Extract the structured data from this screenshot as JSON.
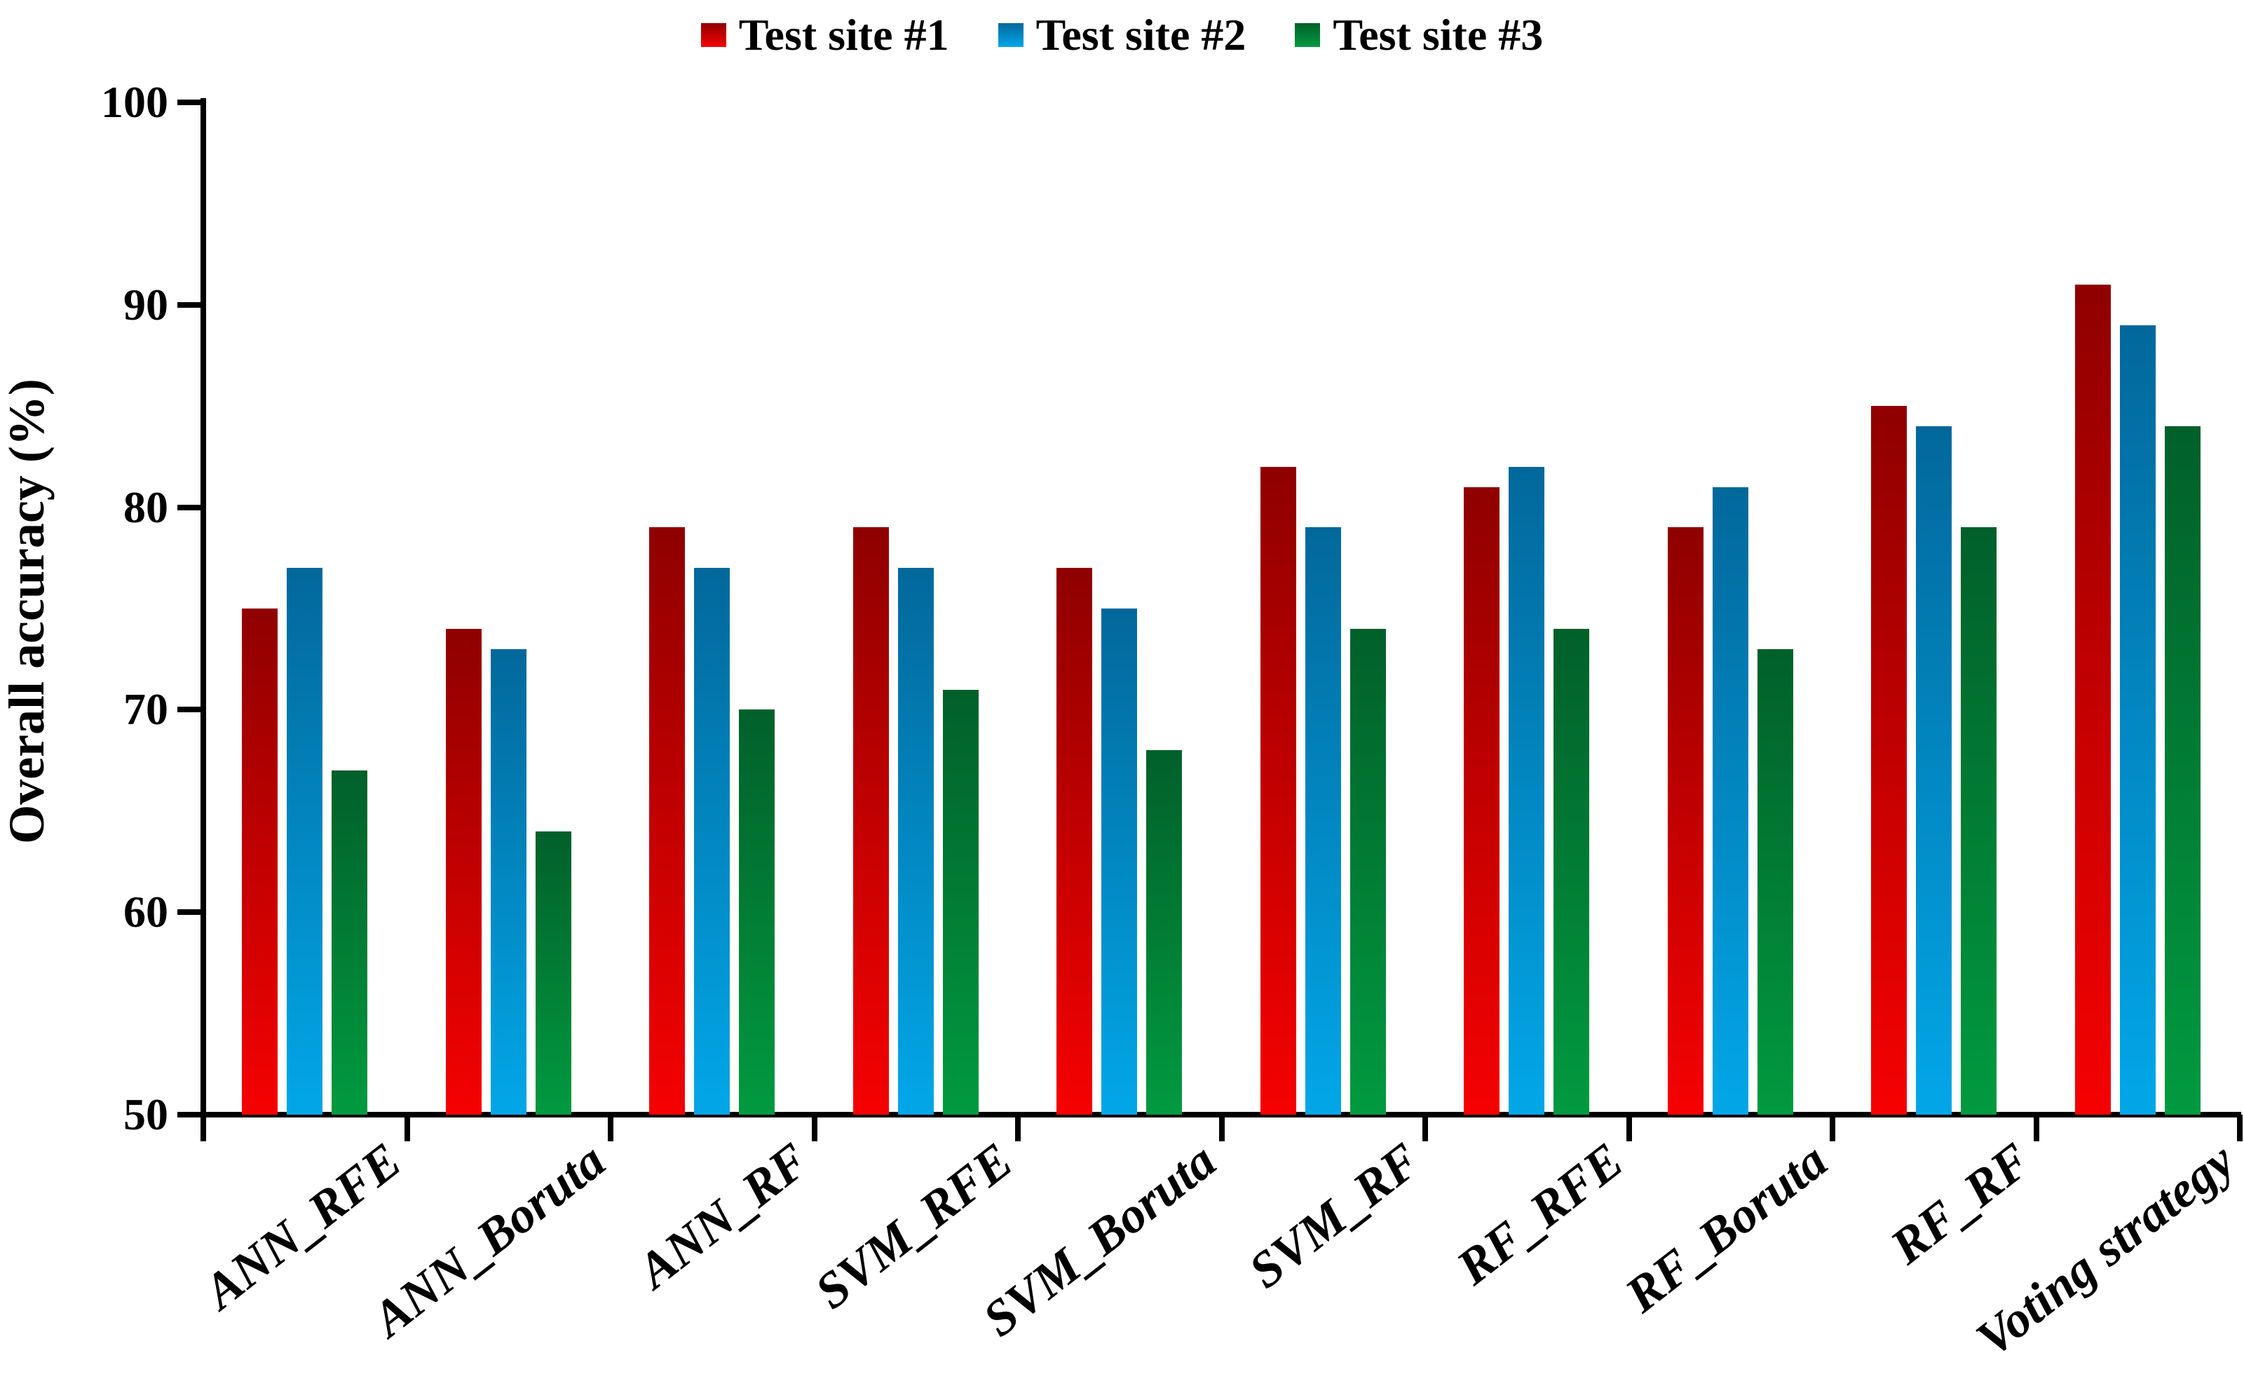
{
  "chart_data": {
    "type": "bar",
    "title": "",
    "xlabel": "",
    "ylabel": "Overall accuracy (%)",
    "ylim": [
      50,
      100
    ],
    "yticks": [
      50,
      60,
      70,
      80,
      90,
      100
    ],
    "grid": false,
    "legend_position": "top-center",
    "axis_color": "#000000",
    "text_color": "#000000",
    "categories": [
      "ANN_RFE",
      "ANN_Boruta",
      "ANN_RF",
      "SVM_RFE",
      "SVM_Boruta",
      "SVM_RF",
      "RF_RFE",
      "RF_Boruta",
      "RF_RF",
      "Voting strategy"
    ],
    "series": [
      {
        "name": "Test site #1",
        "color_top": "#8F0000",
        "color_bottom": "#F60101",
        "values": [
          75,
          74,
          79,
          79,
          77,
          82,
          81,
          79,
          85,
          91
        ]
      },
      {
        "name": "Test site #2",
        "color_top": "#02689B",
        "color_bottom": "#02A7E8",
        "values": [
          77,
          73,
          77,
          77,
          75,
          79,
          82,
          81,
          84,
          89
        ]
      },
      {
        "name": "Test site #3",
        "color_top": "#01602A",
        "color_bottom": "#019A40",
        "values": [
          67,
          64,
          70,
          71,
          68,
          74,
          74,
          73,
          79,
          84
        ]
      }
    ]
  }
}
